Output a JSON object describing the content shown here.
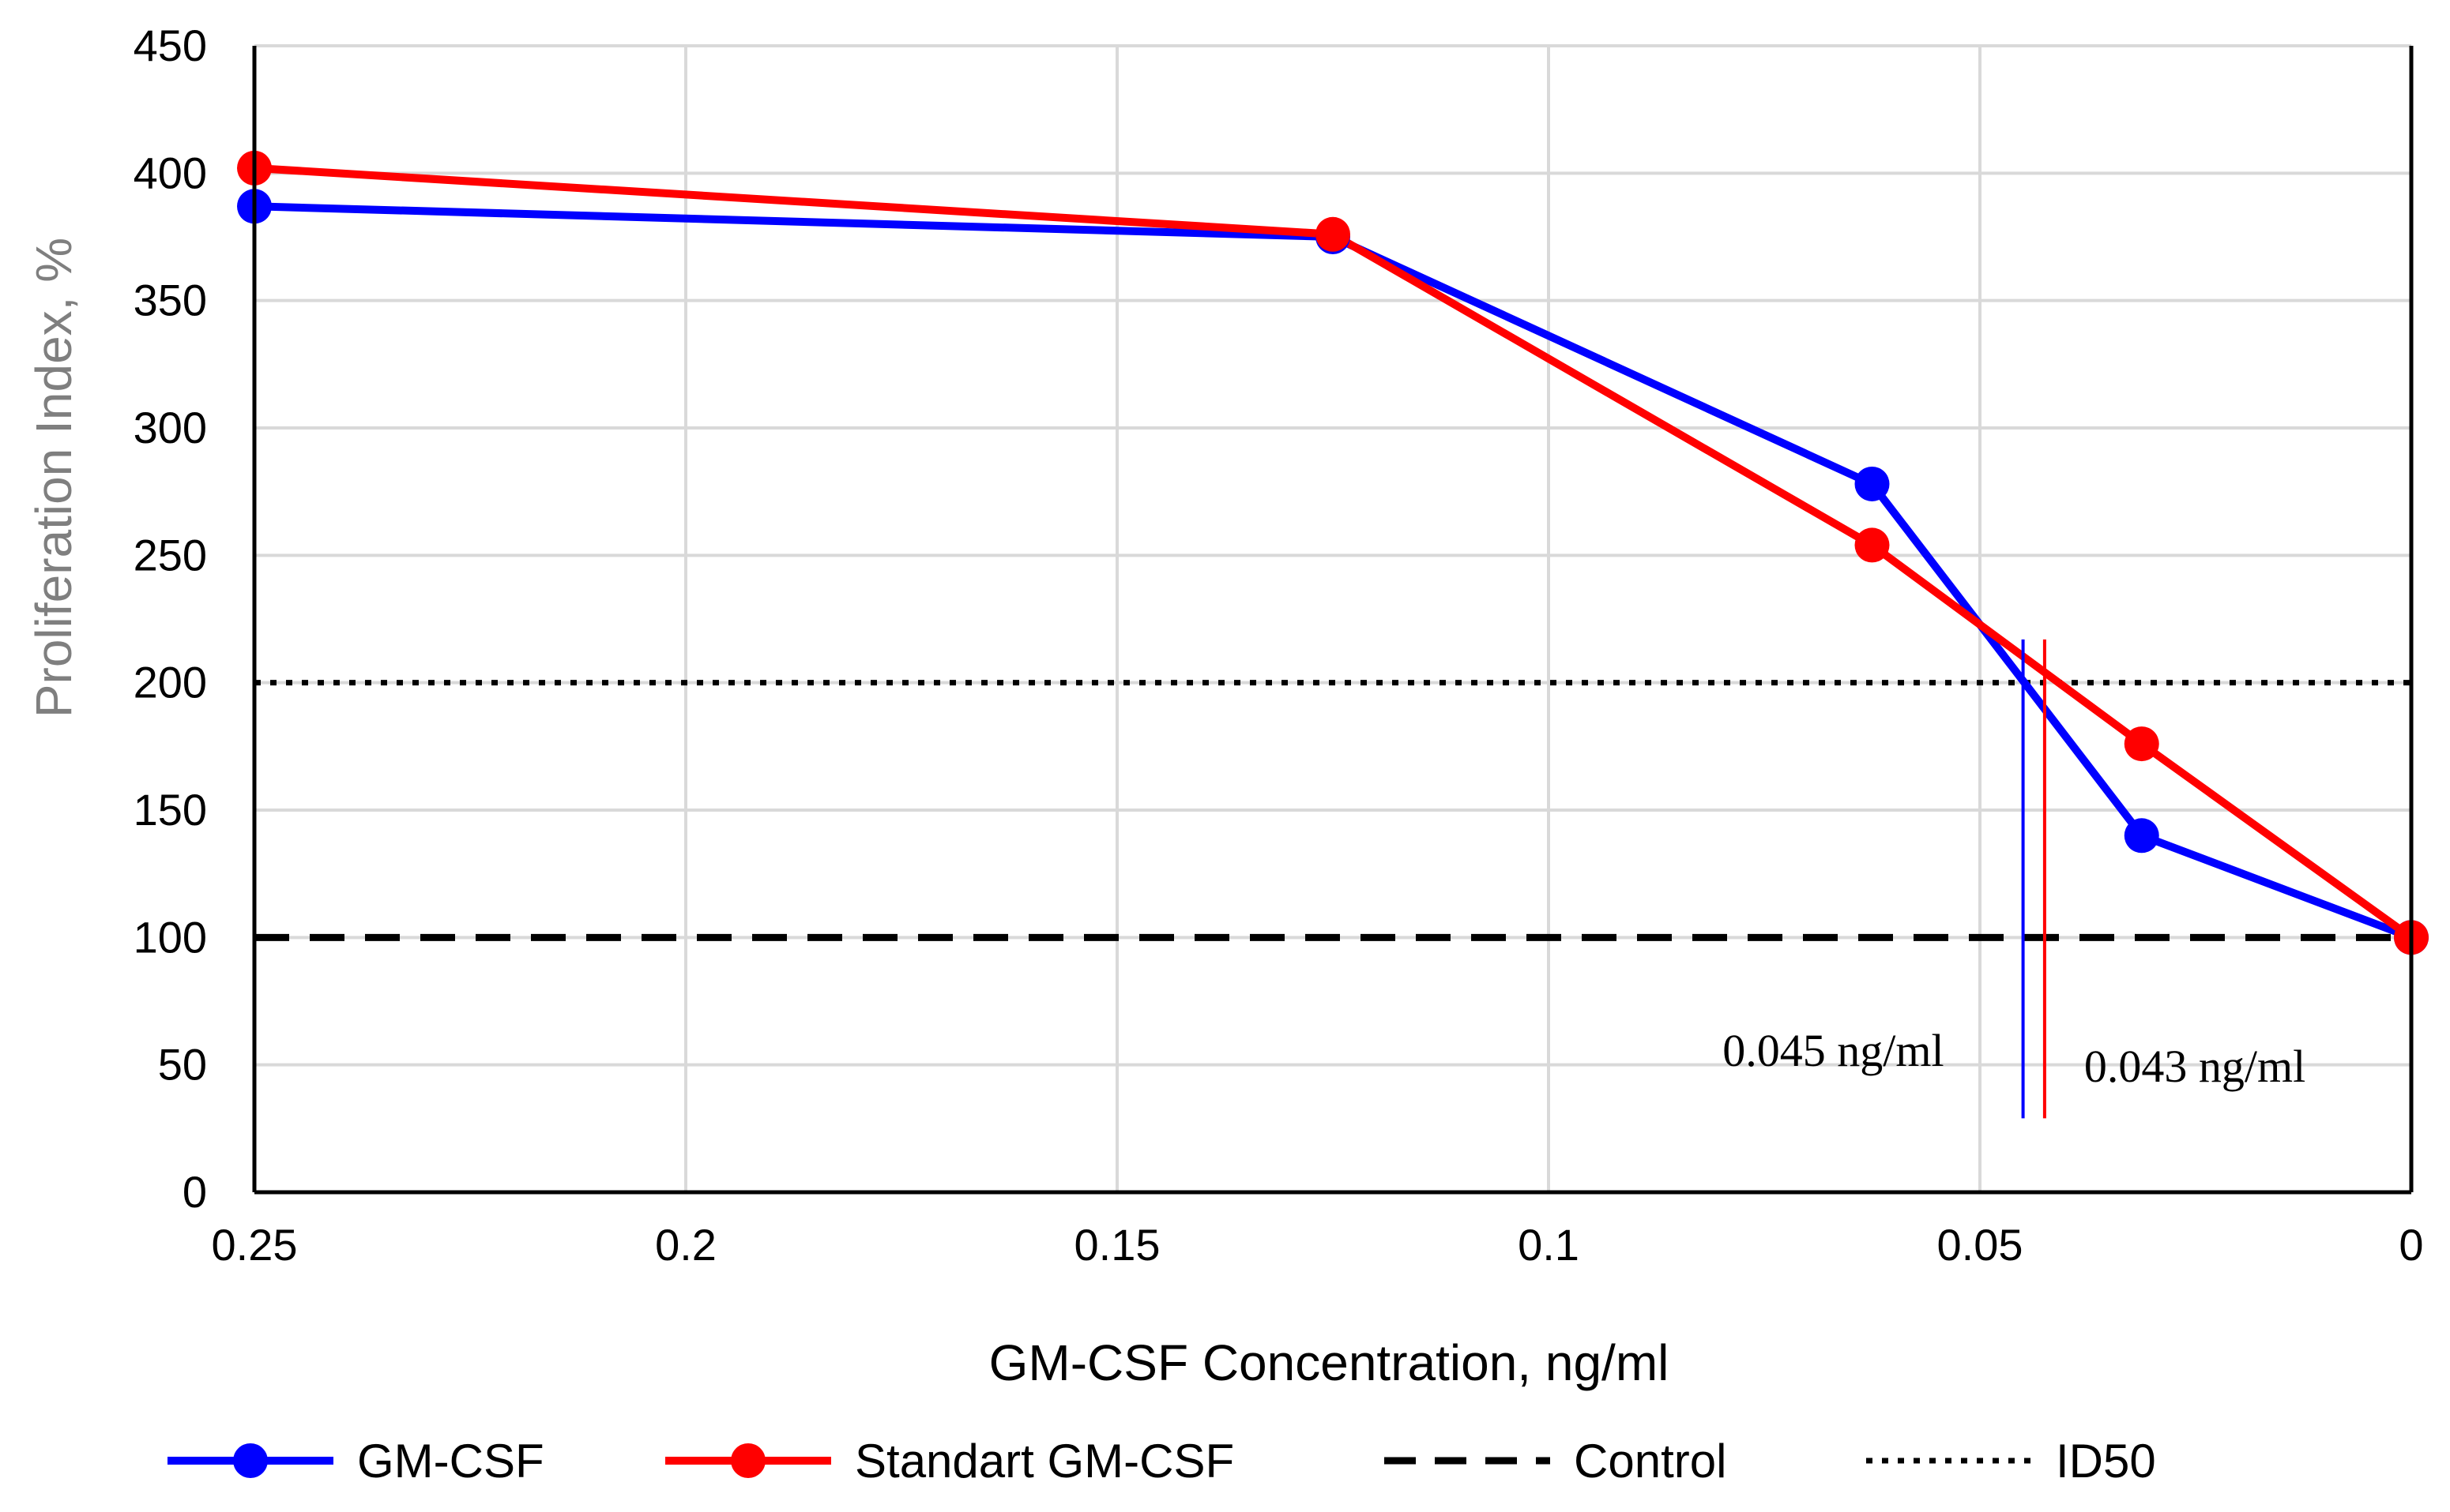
{
  "chart_data": {
    "type": "line",
    "xlabel": "GM-CSF Concentration, ng/ml",
    "ylabel": "Proliferation Index, %",
    "xlim": [
      0.25,
      0
    ],
    "ylim": [
      0,
      450
    ],
    "x_reversed": true,
    "x_ticks": [
      0.25,
      0.2,
      0.15,
      0.1,
      0.05,
      0
    ],
    "x_tick_labels": [
      "0.25",
      "0.2",
      "0.15",
      "0.1",
      "0.05",
      "0"
    ],
    "y_ticks": [
      0,
      50,
      100,
      150,
      200,
      250,
      300,
      350,
      400,
      450
    ],
    "y_tick_labels": [
      "0",
      "50",
      "100",
      "150",
      "200",
      "250",
      "300",
      "350",
      "400",
      "450"
    ],
    "grid": true,
    "legend_position": "bottom",
    "series": [
      {
        "name": "GM-CSF",
        "color": "#0000FF",
        "marker": "circle",
        "x": [
          0.25,
          0.125,
          0.0625,
          0.03125,
          0
        ],
        "y": [
          387,
          375,
          278,
          140,
          100
        ]
      },
      {
        "name": "Standart GM-CSF",
        "color": "#FF0000",
        "marker": "circle",
        "x": [
          0.25,
          0.125,
          0.0625,
          0.03125,
          0
        ],
        "y": [
          402,
          376,
          254,
          176,
          100
        ]
      },
      {
        "name": "Control",
        "color": "#000000",
        "style": "dashed",
        "y_constant": 100
      },
      {
        "name": "ID50",
        "color": "#000000",
        "style": "dotted",
        "y_constant": 200
      }
    ],
    "annotations": [
      {
        "text": "0.045 ng/ml",
        "x": 0.045,
        "y_from": 29,
        "y_to": 217,
        "color": "#0000FF"
      },
      {
        "text": "0.043 ng/ml",
        "x": 0.0425,
        "y_from": 29,
        "y_to": 217,
        "color": "#FF0000"
      }
    ],
    "colors": {
      "grid": "#D9D9D9",
      "axis": "#000000",
      "ylabel": "#7F7F7F"
    }
  }
}
